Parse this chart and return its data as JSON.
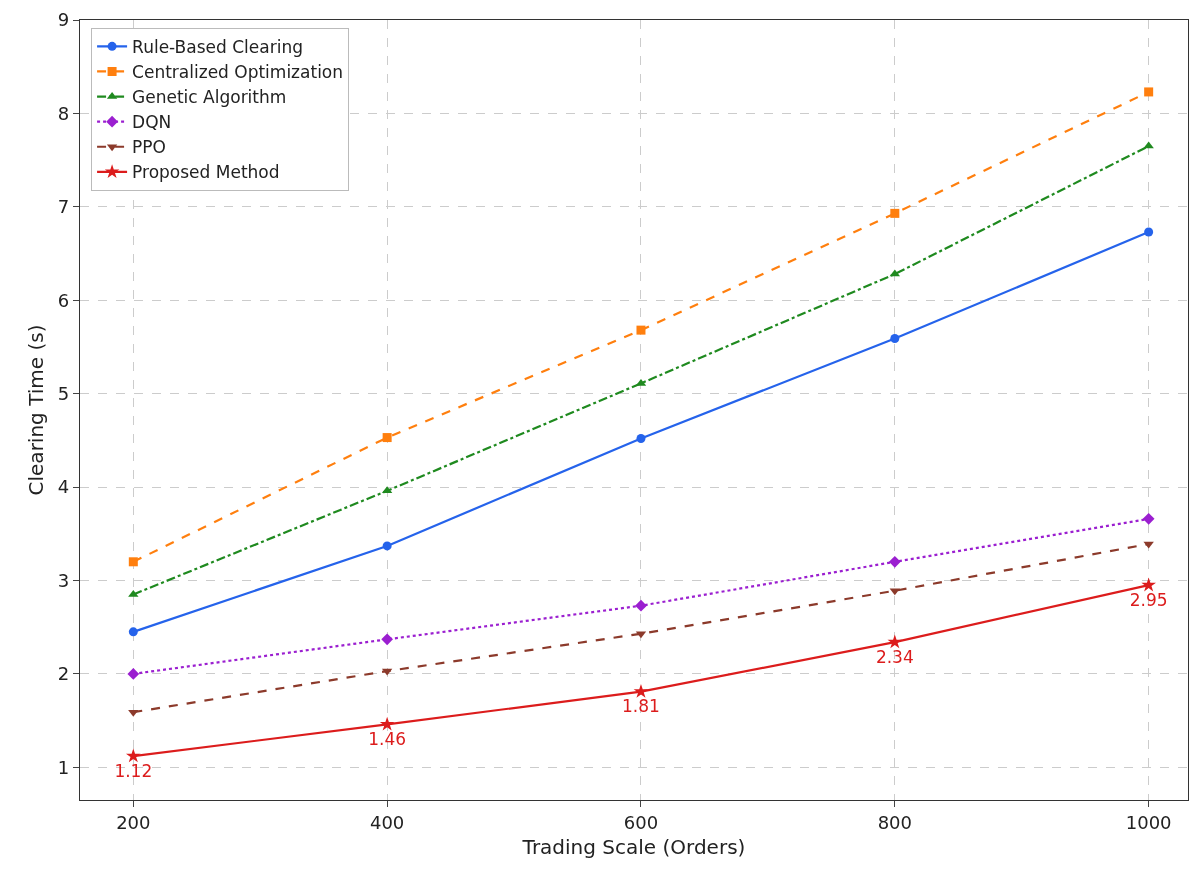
{
  "chart_data": {
    "type": "line",
    "xlabel": "Trading Scale (Orders)",
    "ylabel": "Clearing Time (s)",
    "x": [
      200,
      400,
      600,
      800,
      1000
    ],
    "series": [
      {
        "name": "Rule-Based Clearing",
        "color": "#2563eb",
        "marker": "circle",
        "line_style": "solid",
        "values": [
          2.45,
          3.37,
          4.52,
          5.59,
          6.73
        ]
      },
      {
        "name": "Centralized Optimization",
        "color": "#ff7f0e",
        "marker": "square",
        "line_style": "dashed",
        "values": [
          3.2,
          4.53,
          5.68,
          6.93,
          8.23
        ]
      },
      {
        "name": "Genetic Algorithm",
        "color": "#1f8a1f",
        "marker": "triangle",
        "line_style": "dashdot",
        "values": [
          2.85,
          3.96,
          5.11,
          6.28,
          7.65
        ]
      },
      {
        "name": "DQN",
        "color": "#9b1fd0",
        "marker": "diamond",
        "line_style": "dotted",
        "values": [
          2.0,
          2.37,
          2.73,
          3.2,
          3.66
        ]
      },
      {
        "name": "PPO",
        "color": "#8c3a2b",
        "marker": "triangle-down",
        "line_style": "dashed",
        "values": [
          1.59,
          2.03,
          2.43,
          2.89,
          3.39
        ]
      },
      {
        "name": "Proposed Method",
        "color": "#dc1c1c",
        "marker": "star",
        "line_style": "solid",
        "values": [
          1.12,
          1.46,
          1.81,
          2.34,
          2.95
        ],
        "value_labels": [
          "1.12",
          "1.46",
          "1.81",
          "2.34",
          "2.95"
        ]
      }
    ],
    "xlim": [
      158,
      1031
    ],
    "xticks": [
      200,
      400,
      600,
      800,
      1000
    ],
    "ylim": [
      0.65,
      9
    ],
    "yticks": [
      1,
      2,
      3,
      4,
      5,
      6,
      7,
      8,
      9
    ],
    "grid": true,
    "legend": "top left"
  }
}
